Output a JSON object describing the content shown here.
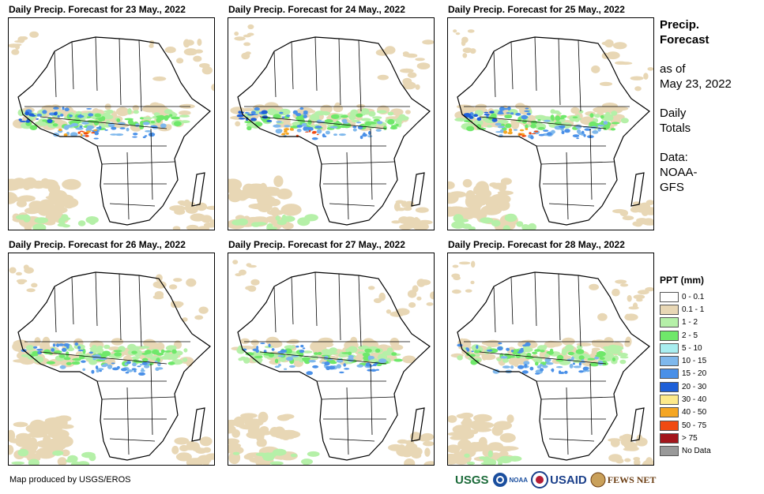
{
  "panels": [
    {
      "title": "Daily Precip. Forecast for 23 May., 2022"
    },
    {
      "title": "Daily Precip. Forecast for 24 May., 2022"
    },
    {
      "title": "Daily Precip. Forecast for 25 May., 2022"
    },
    {
      "title": "Daily Precip. Forecast for 26 May., 2022"
    },
    {
      "title": "Daily Precip. Forecast for 27 May., 2022"
    },
    {
      "title": "Daily Precip. Forecast for 28 May., 2022"
    }
  ],
  "sidebar": {
    "title": "Precip. Forecast",
    "as_of_label": "as of",
    "as_of_date": "May 23, 2022",
    "totals": "Daily Totals",
    "source": "Data: NOAA-GFS"
  },
  "legend": {
    "title": "PPT (mm)",
    "items": [
      {
        "label": "0 - 0.1",
        "color": "#ffffff"
      },
      {
        "label": "0.1 - 1",
        "color": "#e8d7b5"
      },
      {
        "label": "1 - 2",
        "color": "#b5f0a8"
      },
      {
        "label": "2 - 5",
        "color": "#6fe86a"
      },
      {
        "label": "5 - 10",
        "color": "#a9eef0"
      },
      {
        "label": "10 - 15",
        "color": "#7fb8ec"
      },
      {
        "label": "15 - 20",
        "color": "#4a90e8"
      },
      {
        "label": "20 - 30",
        "color": "#1e5fd8"
      },
      {
        "label": "30 - 40",
        "color": "#fde98a"
      },
      {
        "label": "40 - 50",
        "color": "#f5a623"
      },
      {
        "label": "50 - 75",
        "color": "#f04a12"
      },
      {
        "label": "> 75",
        "color": "#a3161c"
      },
      {
        "label": "No Data",
        "color": "#999999"
      }
    ]
  },
  "footer": {
    "credit": "Map produced by USGS/EROS",
    "logos": [
      "USGS",
      "NOAA",
      "USAID",
      "FEWS NET"
    ]
  }
}
